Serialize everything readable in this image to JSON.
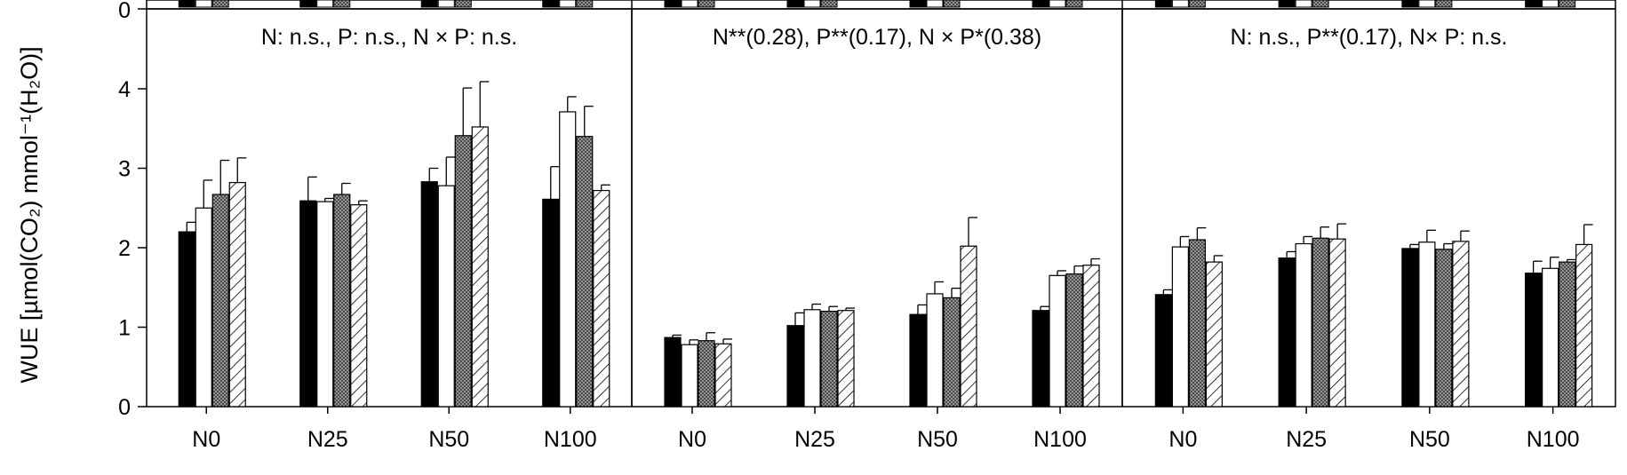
{
  "chart_data": {
    "type": "bar",
    "ylabel": "WUE [µmol(CO₂) mmol⁻¹(H₂O)]",
    "ylim": [
      0,
      5
    ],
    "yticks": [
      0,
      1,
      2,
      3,
      4
    ],
    "top_tick_label": "0",
    "categories": [
      "N0",
      "N25",
      "N50",
      "N100"
    ],
    "legend": "none",
    "grid": false,
    "series_styles": [
      "solid-black",
      "white",
      "crosshatch",
      "diagonal-hatch"
    ],
    "panels": [
      {
        "annotation": "N: n.s., P: n.s., N × P: n.s.",
        "series": [
          {
            "values": [
              2.2,
              2.59,
              2.83,
              2.61
            ],
            "errors": [
              0.12,
              0.3,
              0.17,
              0.41
            ]
          },
          {
            "values": [
              2.5,
              2.58,
              2.78,
              3.71
            ],
            "errors": [
              0.35,
              0.04,
              0.36,
              0.19
            ]
          },
          {
            "values": [
              2.67,
              2.67,
              3.41,
              3.4
            ],
            "errors": [
              0.43,
              0.14,
              0.6,
              0.38
            ]
          },
          {
            "values": [
              2.82,
              2.54,
              3.52,
              2.72
            ],
            "errors": [
              0.31,
              0.05,
              0.57,
              0.07
            ]
          }
        ]
      },
      {
        "annotation": "N**(0.28), P**(0.17), N × P*(0.38)",
        "series": [
          {
            "values": [
              0.87,
              1.02,
              1.16,
              1.21
            ],
            "errors": [
              0.03,
              0.16,
              0.12,
              0.05
            ]
          },
          {
            "values": [
              0.78,
              1.22,
              1.42,
              1.65
            ],
            "errors": [
              0.06,
              0.07,
              0.15,
              0.06
            ]
          },
          {
            "values": [
              0.83,
              1.2,
              1.37,
              1.67
            ],
            "errors": [
              0.1,
              0.06,
              0.12,
              0.1
            ]
          },
          {
            "values": [
              0.79,
              1.21,
              2.02,
              1.78
            ],
            "errors": [
              0.06,
              0.03,
              0.36,
              0.08
            ]
          }
        ]
      },
      {
        "annotation": "N: n.s., P**(0.17), N× P: n.s.",
        "series": [
          {
            "values": [
              1.41,
              1.87,
              1.99,
              1.68
            ],
            "errors": [
              0.06,
              0.08,
              0.05,
              0.15
            ]
          },
          {
            "values": [
              2.01,
              2.05,
              2.07,
              1.74
            ],
            "errors": [
              0.13,
              0.09,
              0.15,
              0.14
            ]
          },
          {
            "values": [
              2.1,
              2.12,
              1.98,
              1.82
            ],
            "errors": [
              0.15,
              0.14,
              0.07,
              0.03
            ]
          },
          {
            "values": [
              1.82,
              2.11,
              2.08,
              2.04
            ],
            "errors": [
              0.08,
              0.19,
              0.13,
              0.25
            ]
          }
        ]
      }
    ]
  }
}
